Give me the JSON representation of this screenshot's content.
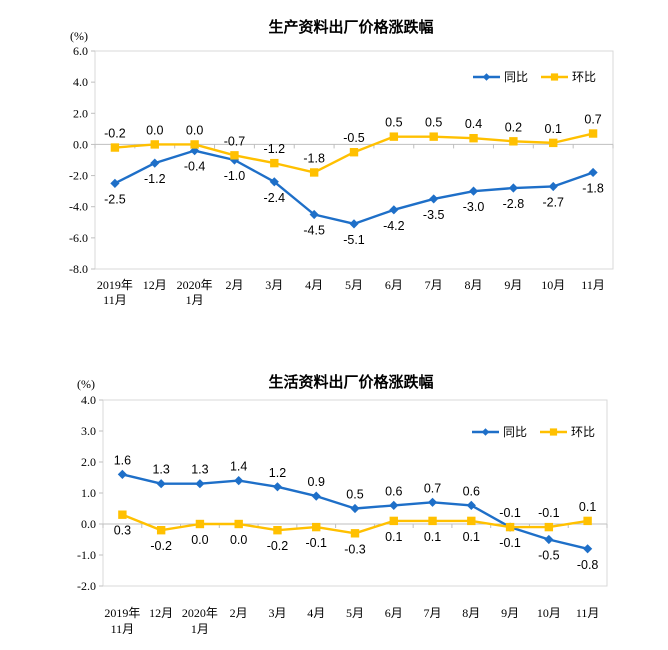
{
  "page": {
    "background": "#FFFFFF"
  },
  "colors": {
    "series_yoy_blue": "#1E6FC8",
    "series_mom_yellow": "#FFC000",
    "axis_line": "#BFBFBF",
    "plot_border": "#D9D9D9",
    "label_text": "#000000"
  },
  "chart_data": [
    {
      "type": "line",
      "title": "生产资料出厂价格涨跌幅",
      "ylabel": "(%)",
      "xlabel": "",
      "grid": false,
      "legend_position": "top-right-inside",
      "categories": [
        "2019年\n11月",
        "12月",
        "2020年\n1月",
        "2月",
        "3月",
        "4月",
        "5月",
        "6月",
        "7月",
        "8月",
        "9月",
        "10月",
        "11月"
      ],
      "ylim": [
        -8.0,
        6.0
      ],
      "ytick_step": 2.0,
      "series": [
        {
          "id": "yoy",
          "name": "同比",
          "marker": "diamond",
          "color": "#1E6FC8",
          "values": [
            -2.5,
            -1.2,
            -0.4,
            -1.0,
            -2.4,
            -4.5,
            -5.1,
            -4.2,
            -3.5,
            -3.0,
            -2.8,
            -2.7,
            -1.8
          ]
        },
        {
          "id": "mom",
          "name": "环比",
          "marker": "square",
          "color": "#FFC000",
          "values": [
            -0.2,
            0.0,
            0.0,
            -0.7,
            -1.2,
            -1.8,
            -0.5,
            0.5,
            0.5,
            0.4,
            0.2,
            0.1,
            0.7
          ]
        }
      ]
    },
    {
      "type": "line",
      "title": "生活资料出厂价格涨跌幅",
      "ylabel": "(%)",
      "xlabel": "",
      "grid": false,
      "legend_position": "top-right-inside",
      "categories": [
        "2019年\n11月",
        "12月",
        "2020年\n1月",
        "2月",
        "3月",
        "4月",
        "5月",
        "6月",
        "7月",
        "8月",
        "9月",
        "10月",
        "11月"
      ],
      "ylim": [
        -2.0,
        4.0
      ],
      "ytick_step": 1.0,
      "series": [
        {
          "id": "yoy",
          "name": "同比",
          "marker": "diamond",
          "color": "#1E6FC8",
          "values": [
            1.6,
            1.3,
            1.3,
            1.4,
            1.2,
            0.9,
            0.5,
            0.6,
            0.7,
            0.6,
            -0.1,
            -0.5,
            -0.8
          ]
        },
        {
          "id": "mom",
          "name": "环比",
          "marker": "square",
          "color": "#FFC000",
          "values": [
            0.3,
            -0.2,
            0.0,
            0.0,
            -0.2,
            -0.1,
            -0.3,
            0.1,
            0.1,
            0.1,
            -0.1,
            -0.1,
            0.1
          ]
        }
      ]
    }
  ]
}
